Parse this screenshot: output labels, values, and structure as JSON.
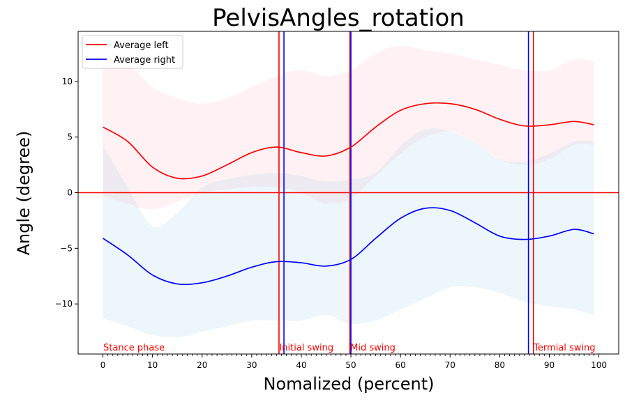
{
  "chart_data": {
    "type": "line",
    "title": "PelvisAngles_rotation",
    "xlabel": "Nomalized (percent)",
    "ylabel": "Angle (degree)",
    "xlim": [
      -5,
      104
    ],
    "ylim": [
      -14.5,
      14.5
    ],
    "x_ticks": [
      0,
      10,
      20,
      30,
      40,
      50,
      60,
      70,
      80,
      90,
      100
    ],
    "x_tick_labels": [
      "0",
      "10",
      "20",
      "30",
      "40",
      "50",
      "60",
      "70",
      "80",
      "90",
      "100"
    ],
    "y_ticks": [
      -10,
      -5,
      0,
      5,
      10
    ],
    "y_tick_labels": [
      "−10",
      "−5",
      "0",
      "5",
      "10"
    ],
    "legend": {
      "position": "top-left",
      "entries": [
        "Average left",
        "Average right"
      ]
    },
    "grid": false,
    "series": [
      {
        "name": "Average left",
        "color": "#ff0000",
        "band_color": "#ffc0cb",
        "x": [
          0,
          5,
          10,
          15,
          20,
          25,
          30,
          35,
          40,
          45,
          50,
          55,
          60,
          65,
          70,
          75,
          80,
          85,
          90,
          95,
          99
        ],
        "values": [
          5.9,
          4.6,
          2.3,
          1.3,
          1.5,
          2.5,
          3.6,
          4.1,
          3.6,
          3.3,
          4.1,
          5.9,
          7.4,
          8.0,
          8.0,
          7.5,
          6.6,
          6.0,
          6.1,
          6.4,
          6.1
        ],
        "upper": [
          12.0,
          11.5,
          9.5,
          8.5,
          8.0,
          8.5,
          9.5,
          10.5,
          11.0,
          10.5,
          11.0,
          12.5,
          13.2,
          12.8,
          12.5,
          12.0,
          11.5,
          11.0,
          11.0,
          12.0,
          11.8
        ],
        "lower": [
          -0.3,
          -1.0,
          -1.5,
          -0.8,
          0.0,
          0.3,
          0.5,
          0.5,
          0.0,
          -1.0,
          -0.5,
          1.5,
          3.5,
          5.0,
          5.5,
          4.5,
          3.0,
          2.5,
          3.0,
          4.3,
          4.3
        ]
      },
      {
        "name": "Average right",
        "color": "#0000ff",
        "band_color": "#add8e6",
        "x": [
          0,
          5,
          10,
          15,
          20,
          25,
          30,
          35,
          40,
          45,
          50,
          55,
          60,
          65,
          70,
          75,
          80,
          85,
          90,
          95,
          99
        ],
        "values": [
          -4.1,
          -5.6,
          -7.4,
          -8.2,
          -8.1,
          -7.5,
          -6.7,
          -6.2,
          -6.3,
          -6.6,
          -6.0,
          -4.1,
          -2.3,
          -1.4,
          -1.6,
          -2.7,
          -3.9,
          -4.2,
          -3.9,
          -3.3,
          -3.7
        ],
        "upper": [
          4.3,
          0.5,
          -3.0,
          -1.8,
          0.5,
          1.2,
          1.6,
          1.8,
          1.5,
          1.0,
          1.2,
          1.8,
          4.2,
          5.7,
          5.5,
          4.5,
          3.0,
          2.8,
          3.5,
          4.6,
          4.6
        ],
        "lower": [
          -11.3,
          -12.0,
          -12.8,
          -13.0,
          -12.5,
          -12.0,
          -11.5,
          -11.5,
          -11.5,
          -11.0,
          -11.8,
          -11.5,
          -10.5,
          -9.5,
          -8.5,
          -8.5,
          -9.0,
          -9.8,
          -10.2,
          -10.5,
          -11.0
        ]
      }
    ],
    "zero_line": {
      "y": 0,
      "color": "#ff0000"
    },
    "phase_lines": [
      {
        "x": 35.5,
        "color": "#ff0000"
      },
      {
        "x": 36.5,
        "color": "#0000ff"
      },
      {
        "x": 49.8,
        "color": "#ff0000"
      },
      {
        "x": 50.0,
        "color": "#0000ff"
      },
      {
        "x": 85.8,
        "color": "#0000ff"
      },
      {
        "x": 86.8,
        "color": "#ff0000"
      }
    ],
    "phase_labels": [
      {
        "text": "Stance phase",
        "x": 0,
        "color": "#ff0000"
      },
      {
        "text": "Initial swing",
        "x": 35.5,
        "color": "#ff0000"
      },
      {
        "text": "Mid swing",
        "x": 49.8,
        "color": "#ff0000"
      },
      {
        "text": "Termial swing",
        "x": 86.8,
        "color": "#ff0000"
      }
    ]
  }
}
